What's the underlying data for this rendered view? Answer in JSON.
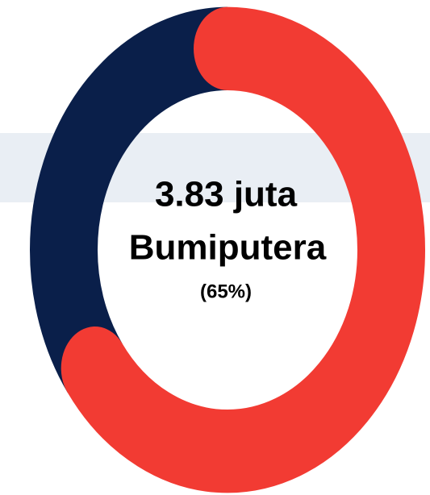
{
  "chart_data": {
    "type": "donut",
    "center_text": [
      "3.83 juta",
      "Bumiputera"
    ],
    "values": [
      65,
      35
    ],
    "value_labels": [
      "(65%)",
      null
    ],
    "colors": [
      "#f23b33",
      "#0a1f4a"
    ]
  }
}
